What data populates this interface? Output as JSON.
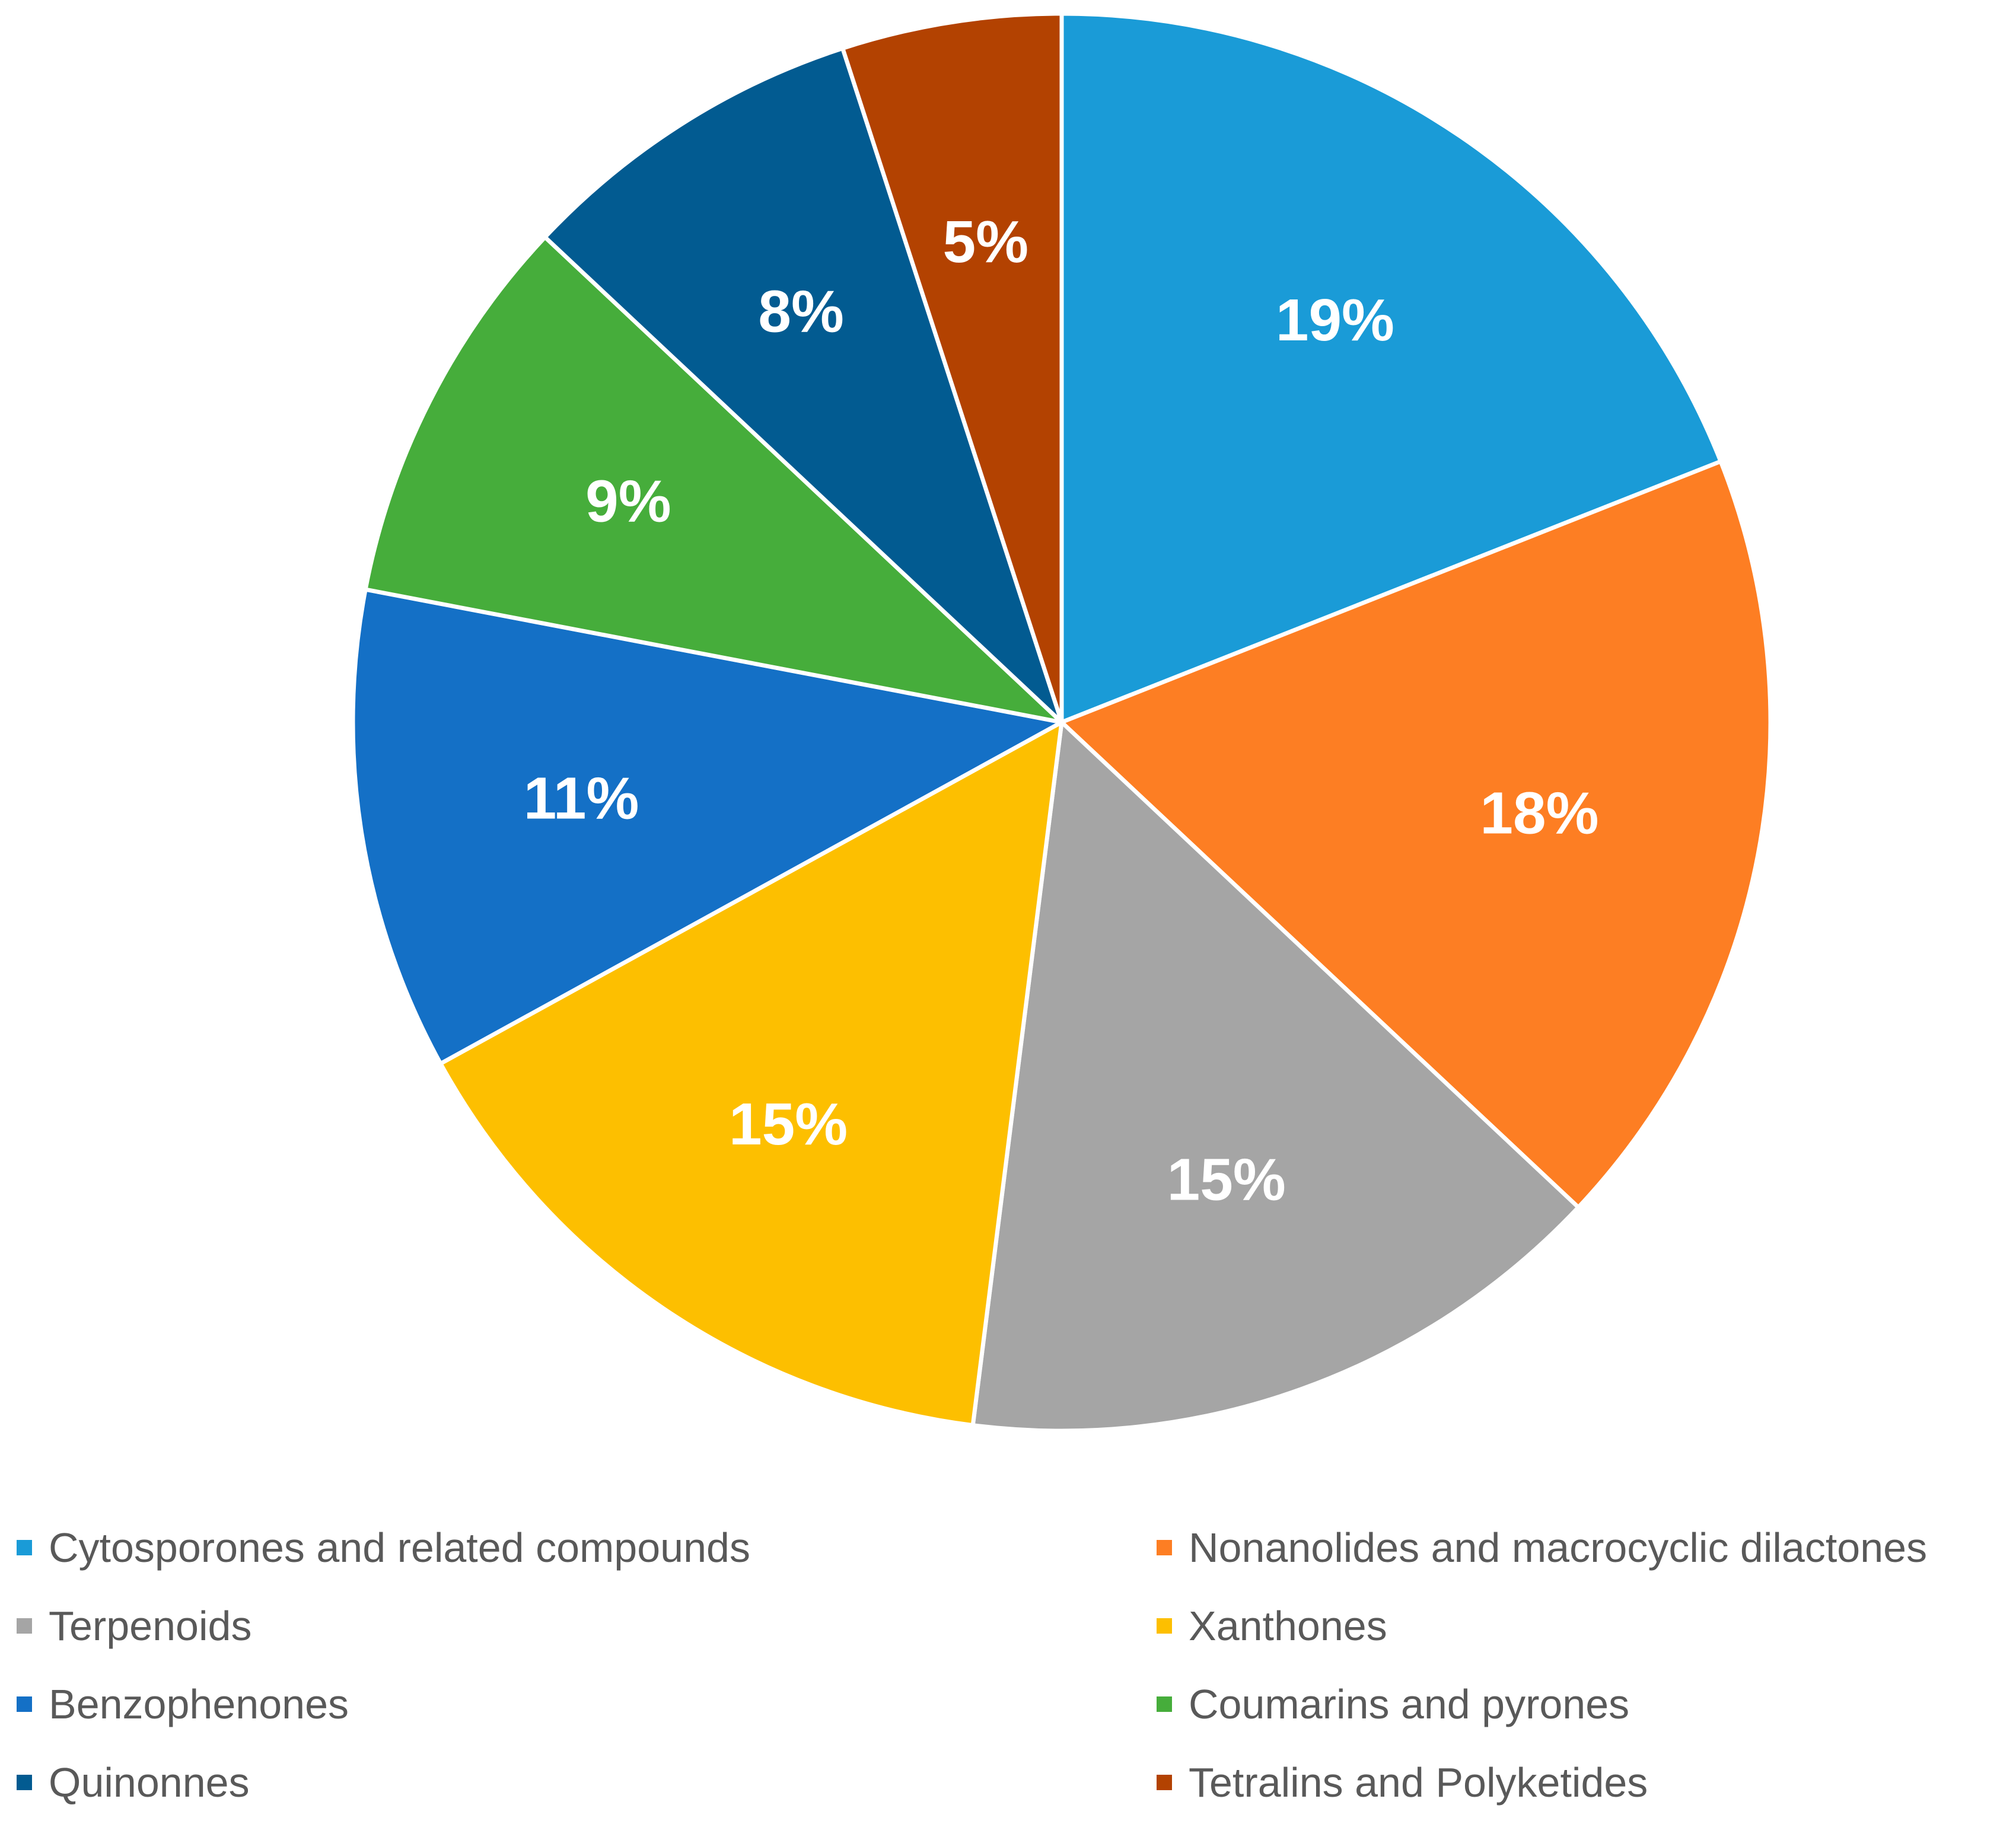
{
  "chart_data": {
    "type": "pie",
    "categories": [
      "Cytosporones and related compounds",
      "Nonanolides and macrocyclic dilactones",
      "Terpenoids",
      "Xanthones",
      "Benzophenones",
      "Coumarins and pyrones",
      "Quinonnes",
      "Tetralins and Polyketides"
    ],
    "values": [
      19,
      18,
      15,
      15,
      11,
      9,
      8,
      5
    ],
    "labels": [
      "19%",
      "18%",
      "15%",
      "15%",
      "11%",
      "9%",
      "8%",
      "5%"
    ],
    "colors": [
      "#1a9bd7",
      "#fd7e23",
      "#a5a5a5",
      "#fdbf00",
      "#1470c6",
      "#46ad3b",
      "#025b91",
      "#b34201"
    ],
    "title": "",
    "legend_position": "bottom",
    "start_angle": "12 o'clock",
    "direction": "clockwise"
  }
}
